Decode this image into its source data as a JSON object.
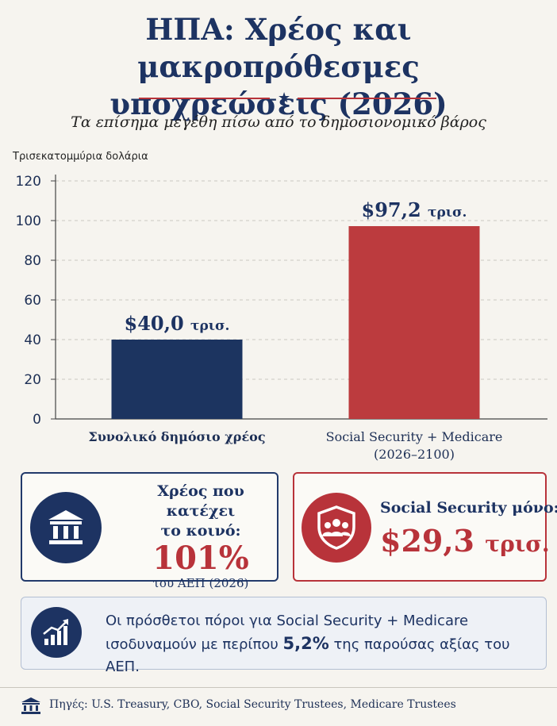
{
  "header": {
    "title_line1": "ΗΠΑ: Χρέος και μακροπρόθεσμες",
    "title_line2": "υποχρεώσεις (2026)",
    "subtitle": "Τα επίσημα μεγέθη πίσω από το δημοσιονομικό βάρος"
  },
  "chart_data": {
    "type": "bar",
    "ylabel": "Τρισεκατομμύρια δολάρια",
    "ylim": [
      0,
      120
    ],
    "yticks": [
      0,
      20,
      40,
      60,
      80,
      100,
      120
    ],
    "grid": true,
    "categories": [
      {
        "line1": "Συνολικό δημόσιο χρέος",
        "line2": "",
        "bold": true
      },
      {
        "line1": "Social Security + Medicare",
        "line2": "(2026–2100)",
        "bold": false
      }
    ],
    "values": [
      40.0,
      97.2
    ],
    "data_labels": [
      {
        "amount": "$40,0",
        "unit": "τρισ."
      },
      {
        "amount": "$97,2",
        "unit": "τρισ."
      }
    ],
    "colors": [
      "#1c3460",
      "#bc3b3e"
    ]
  },
  "cards": {
    "debt": {
      "icon": "bank-icon",
      "label_line1": "Χρέος που κατέχει",
      "label_line2": "το κοινό:",
      "value": "101%",
      "sub": "του ΑΕΠ (2026)"
    },
    "social_security": {
      "icon": "shield-people-icon",
      "label": "Social Security μόνο:",
      "amount": "$29,3",
      "unit": "τρισ."
    },
    "info": {
      "icon": "growth-chart-icon",
      "line1": "Οι πρόσθετοι πόροι για Social Security +  Medicare",
      "line2_before": "ισοδυναμούν με περίπου ",
      "line2_bold": "5,2%",
      "line2_after": " της παρούσας αξίας του ΑΕΠ."
    }
  },
  "footer": {
    "icon": "bank-icon",
    "sources": "Πηγές: U.S. Treasury, CBO, Social Security Trustees, Medicare Trustees"
  },
  "colors": {
    "navy": "#1d3362",
    "red": "#b8333a",
    "background": "#f6f4ef"
  }
}
